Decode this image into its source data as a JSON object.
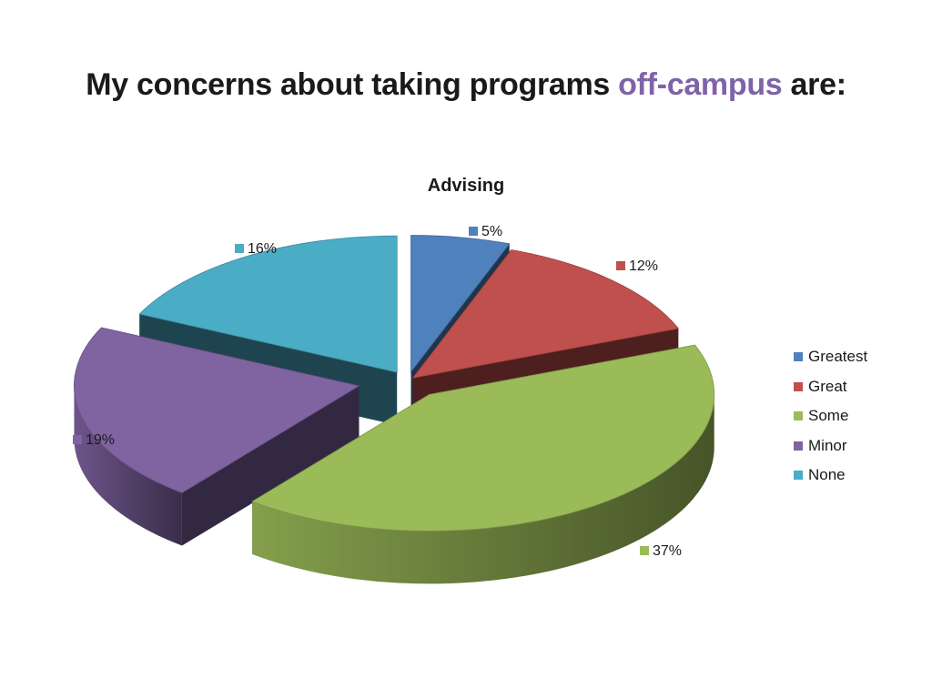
{
  "slide": {
    "title_prefix": "My concerns about taking programs ",
    "title_accent": "off-campus",
    "title_suffix": " are:"
  },
  "chart_data": {
    "type": "pie",
    "title": "Advising",
    "three_d": true,
    "exploded": true,
    "legend_position": "right",
    "categories": [
      "Greatest",
      "Great",
      "Some",
      "Minor",
      "None"
    ],
    "values": [
      5,
      12,
      37,
      19,
      16
    ],
    "labels": [
      "5%",
      "12%",
      "37%",
      "19%",
      "16%"
    ],
    "colors": [
      "#4f81bd",
      "#c0504d",
      "#9bbb59",
      "#8064a2",
      "#4bacc6"
    ]
  }
}
